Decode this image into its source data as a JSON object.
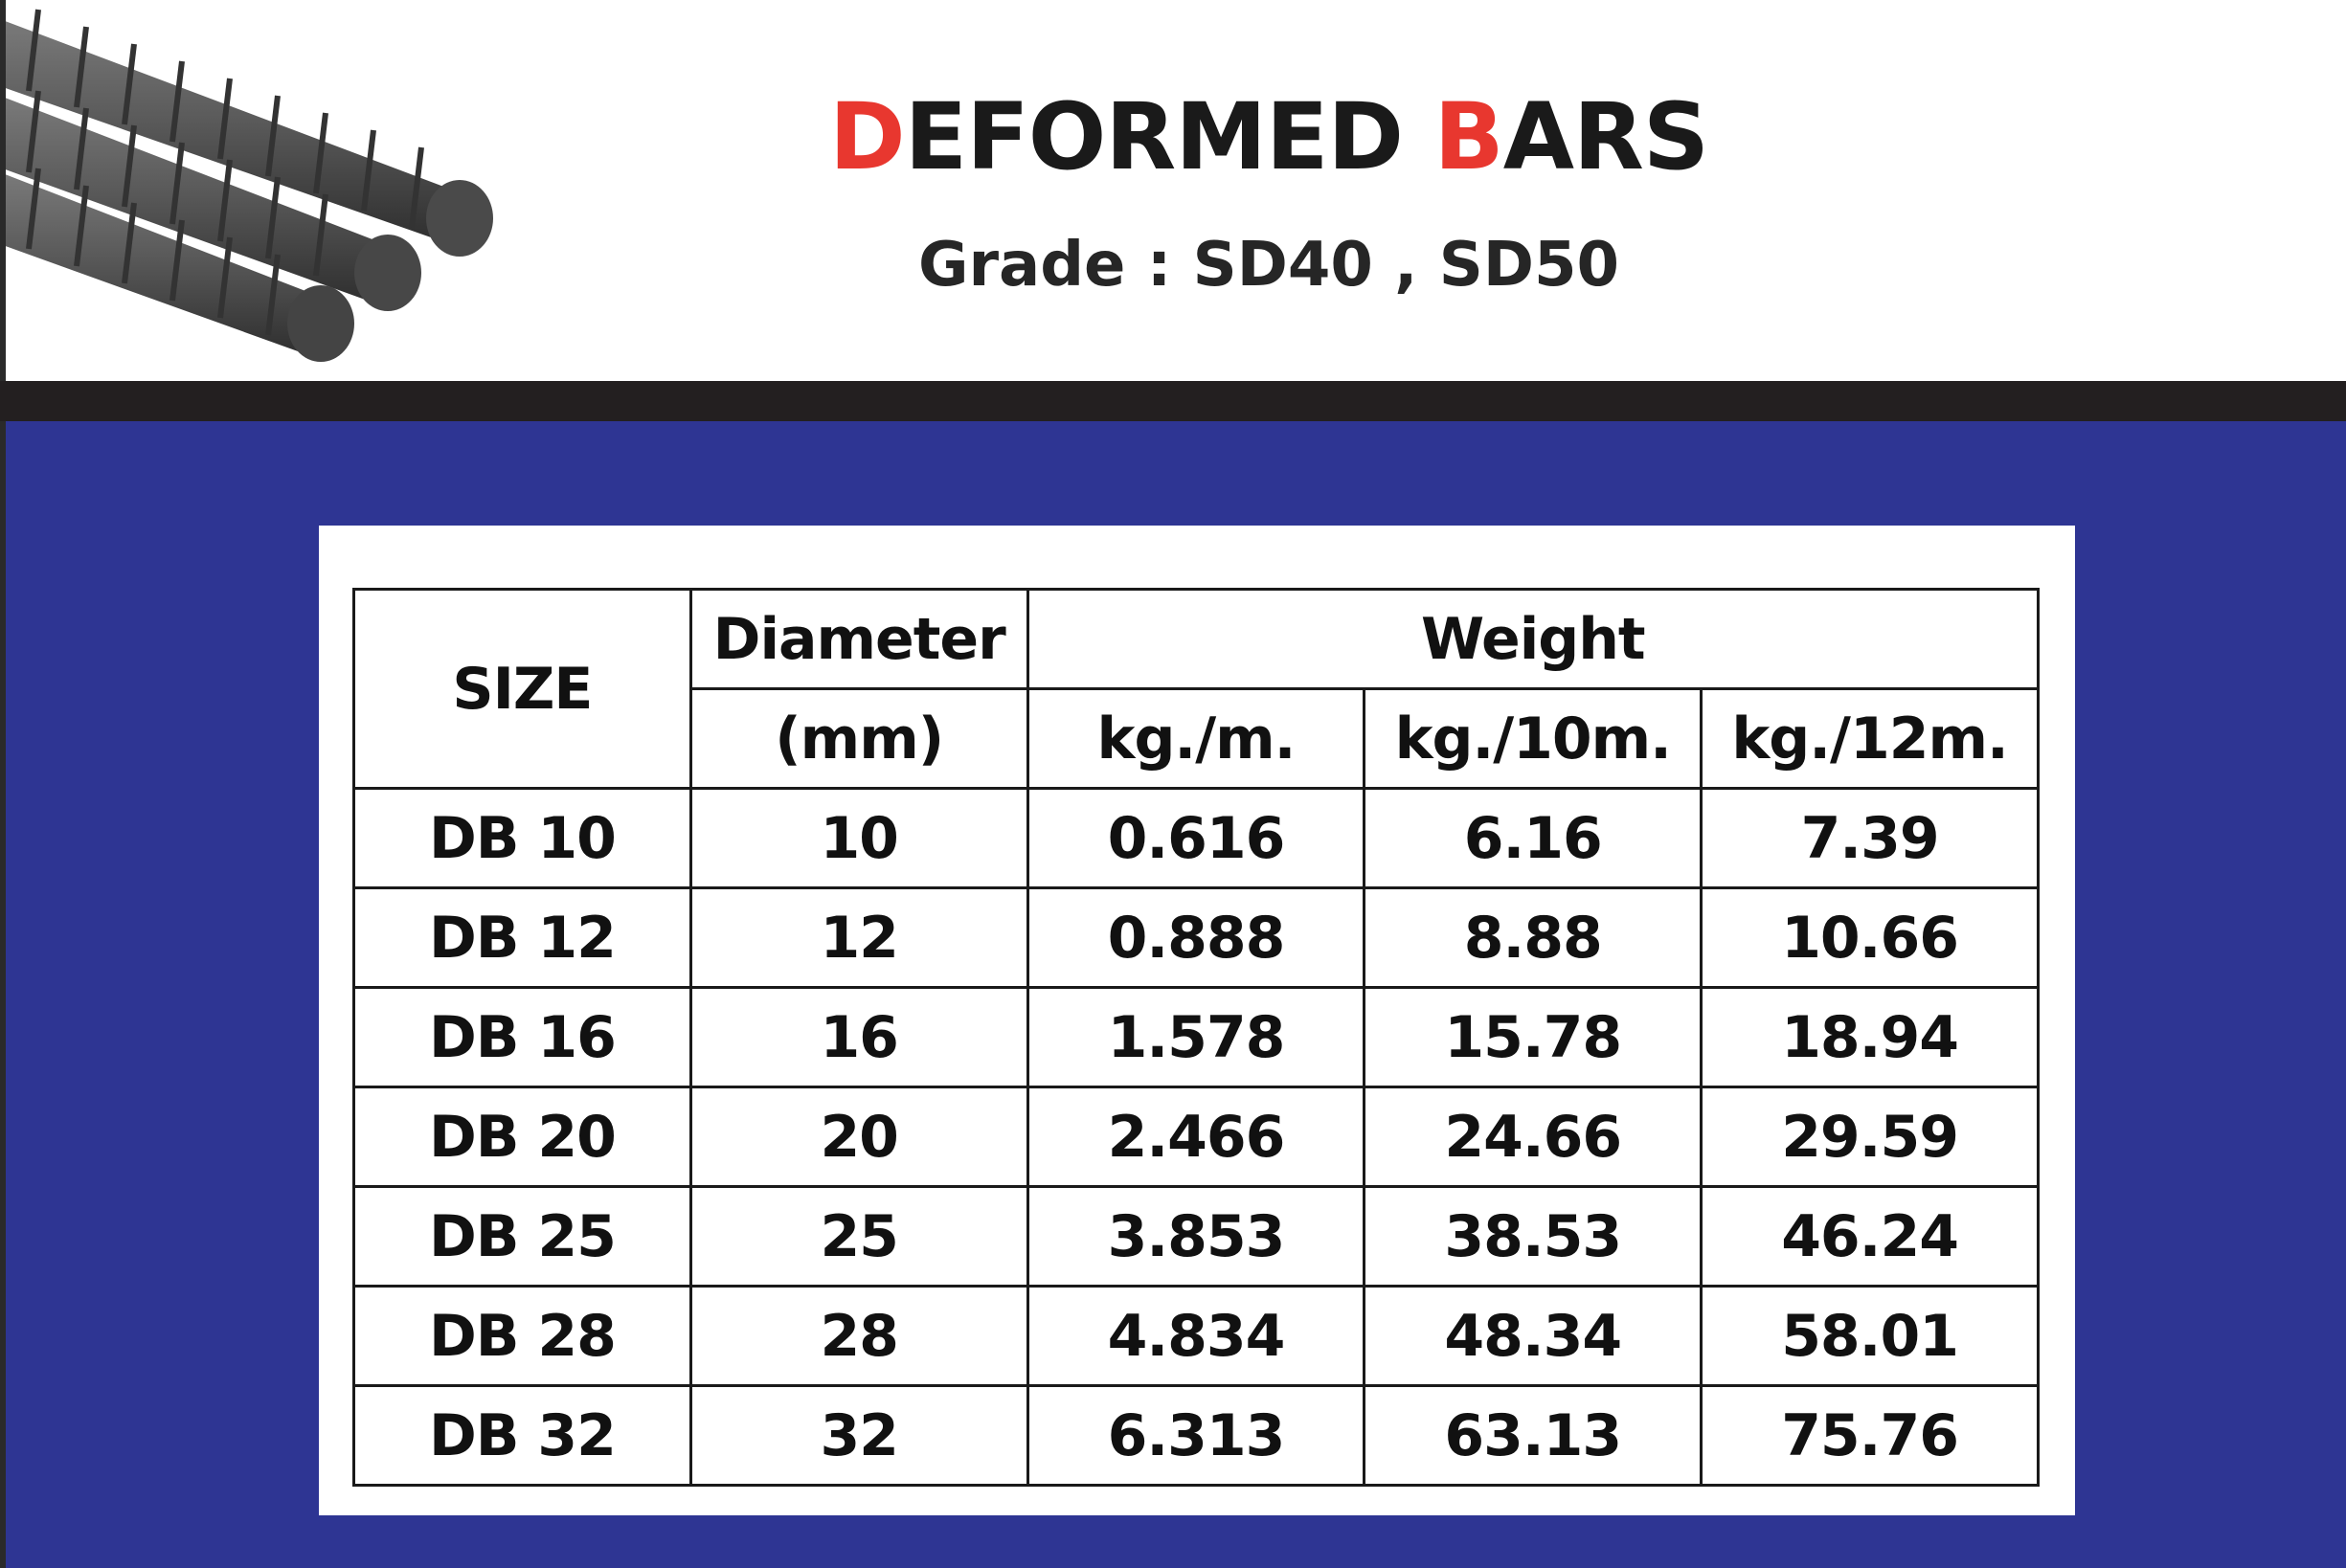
{
  "header": {
    "title_initial_1": "D",
    "title_rest_1": "EFORMED ",
    "title_initial_2": "B",
    "title_rest_2": "ARS",
    "subtitle": "Grade : SD40 , SD50"
  },
  "colors": {
    "accent": "#e8372f",
    "band": "#231f20",
    "background_blue": "#2e3593"
  },
  "table": {
    "headers": {
      "size": "SIZE",
      "diameter": "Diameter",
      "diameter_unit": "(mm)",
      "weight": "Weight",
      "weight_units": [
        "kg./m.",
        "kg./10m.",
        "kg./12m."
      ]
    },
    "rows": [
      [
        "DB 10",
        "10",
        "0.616",
        "6.16",
        "7.39"
      ],
      [
        "DB 12",
        "12",
        "0.888",
        "8.88",
        "10.66"
      ],
      [
        "DB 16",
        "16",
        "1.578",
        "15.78",
        "18.94"
      ],
      [
        "DB 20",
        "20",
        "2.466",
        "24.66",
        "29.59"
      ],
      [
        "DB 25",
        "25",
        "3.853",
        "38.53",
        "46.24"
      ],
      [
        "DB 28",
        "28",
        "4.834",
        "48.34",
        "58.01"
      ],
      [
        "DB 32",
        "32",
        "6.313",
        "63.13",
        "75.76"
      ]
    ]
  }
}
